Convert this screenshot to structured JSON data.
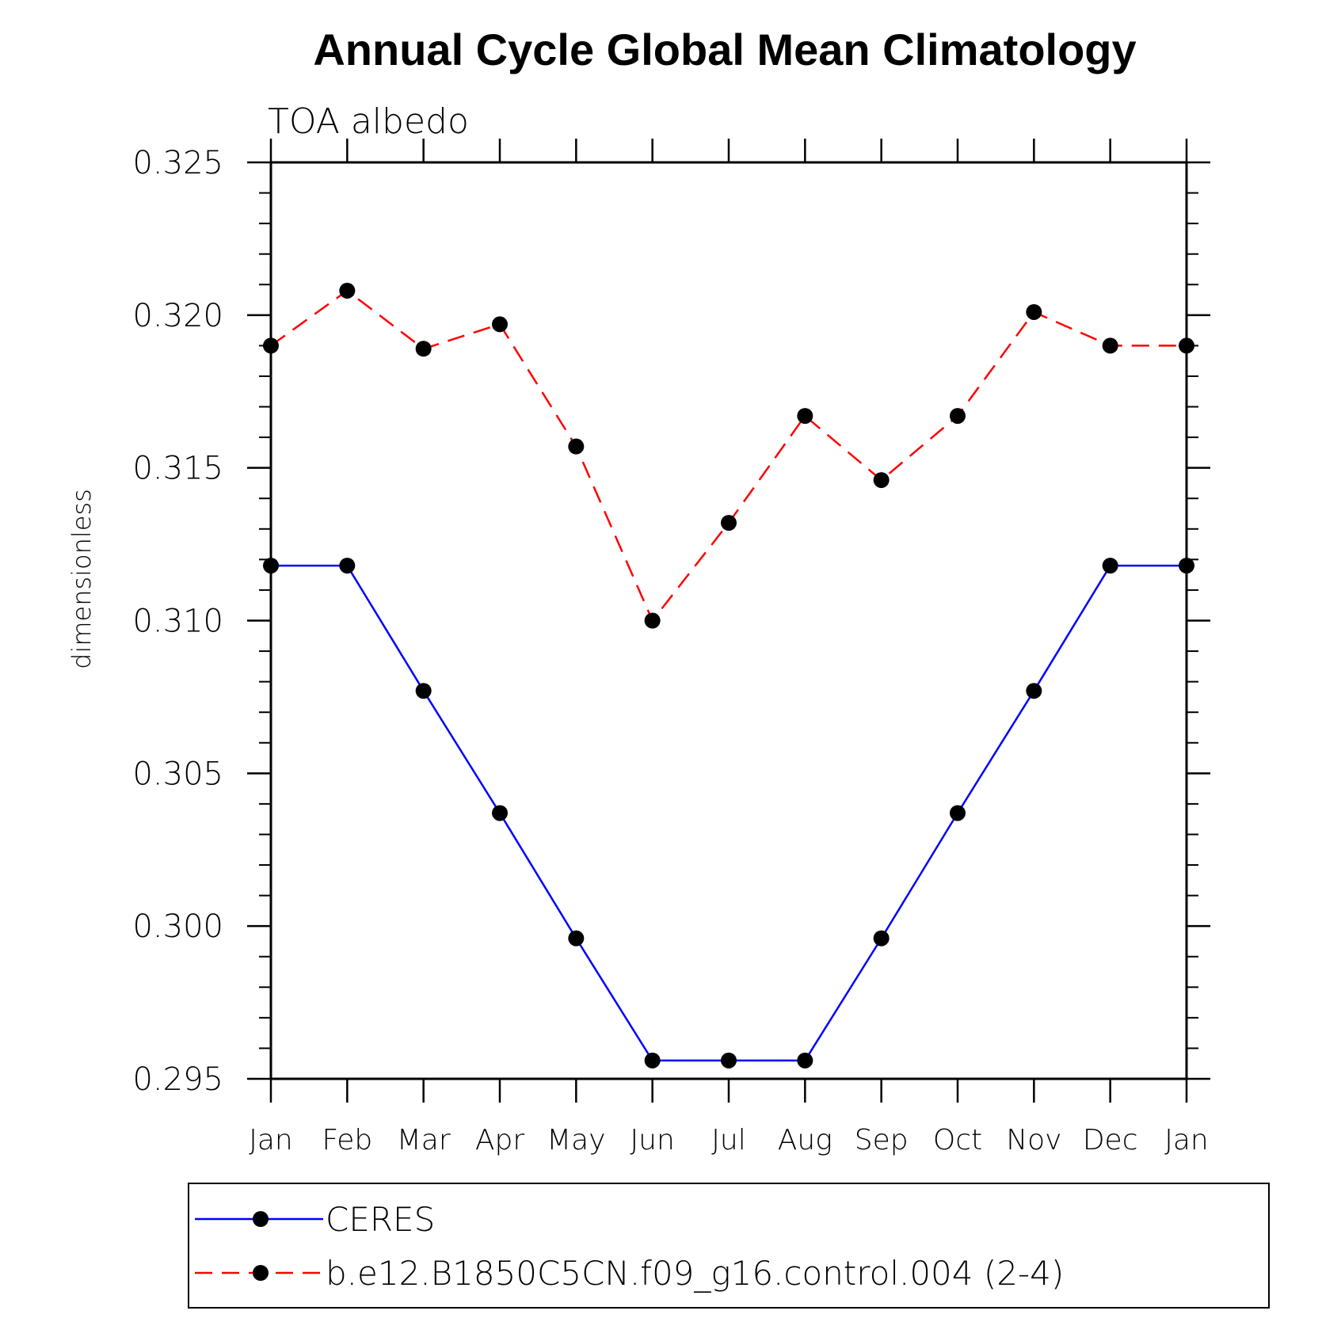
{
  "chart_data": {
    "type": "line",
    "title": "Annual Cycle Global Mean Climatology",
    "subtitle": "TOA albedo",
    "ylabel": "dimensionless",
    "xlabel": "",
    "categories": [
      "Jan",
      "Feb",
      "Mar",
      "Apr",
      "May",
      "Jun",
      "Jul",
      "Aug",
      "Sep",
      "Oct",
      "Nov",
      "Dec",
      "Jan"
    ],
    "ylim": [
      0.295,
      0.325
    ],
    "yticks": [
      "0.295",
      "0.300",
      "0.305",
      "0.310",
      "0.315",
      "0.320",
      "0.325"
    ],
    "grid": false,
    "legend_position": "bottom",
    "series": [
      {
        "name": "CERES",
        "color": "#0000ff",
        "dash": "solid",
        "values": [
          0.3118,
          0.3118,
          0.3077,
          0.3037,
          0.2996,
          0.2956,
          0.2956,
          0.2956,
          0.2996,
          0.3037,
          0.3077,
          0.3118,
          0.3118
        ]
      },
      {
        "name": "b.e12.B1850C5CN.f09_g16.control.004 (2-4)",
        "color": "#ff0000",
        "dash": "dashed",
        "values": [
          0.319,
          0.3208,
          0.3189,
          0.3197,
          0.3157,
          0.31,
          0.3132,
          0.3167,
          0.3146,
          0.3167,
          0.3201,
          0.319,
          0.319
        ]
      }
    ]
  }
}
